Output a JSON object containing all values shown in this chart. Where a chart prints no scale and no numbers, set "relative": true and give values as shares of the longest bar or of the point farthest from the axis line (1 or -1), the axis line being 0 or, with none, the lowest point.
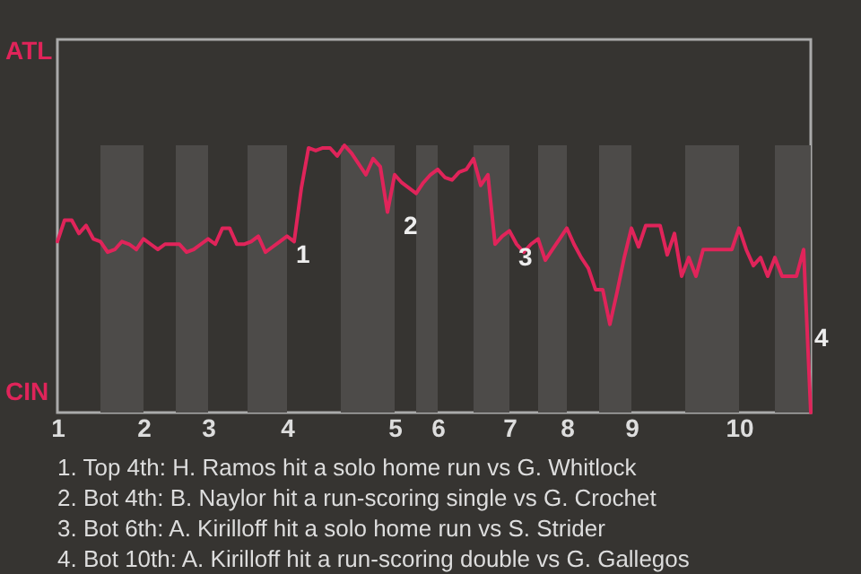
{
  "chart_data": {
    "type": "line",
    "relative": true,
    "categories": [
      "1",
      null,
      null,
      null,
      null,
      null,
      null,
      null,
      null,
      null,
      null,
      null,
      "2",
      null,
      null,
      null,
      null,
      null,
      null,
      null,
      null,
      "3",
      null,
      null,
      null,
      null,
      null,
      null,
      null,
      null,
      null,
      null,
      "4",
      null,
      null,
      null,
      null,
      null,
      null,
      null,
      null,
      null,
      null,
      null,
      null,
      null,
      null,
      "5",
      null,
      null,
      null,
      null,
      null,
      "6",
      null,
      null,
      null,
      null,
      null,
      null,
      null,
      null,
      null,
      "7",
      null,
      null,
      null,
      null,
      null,
      null,
      null,
      "8",
      null,
      null,
      null,
      null,
      null,
      null,
      null,
      null,
      "9",
      null,
      null,
      null,
      null,
      null,
      null,
      null,
      null,
      null,
      null,
      null,
      null,
      null,
      null,
      "10",
      null,
      null,
      null,
      null,
      null,
      null,
      null,
      null,
      null,
      null
    ],
    "series": [
      {
        "color": "#e0245a",
        "values": [
          0.64,
          0.72,
          0.72,
          0.67,
          0.7,
          0.65,
          0.64,
          0.6,
          0.61,
          0.64,
          0.63,
          0.61,
          0.65,
          0.63,
          0.61,
          0.63,
          0.63,
          0.63,
          0.6,
          0.61,
          0.63,
          0.65,
          0.63,
          0.69,
          0.69,
          0.63,
          0.63,
          0.64,
          0.66,
          0.6,
          0.62,
          0.64,
          0.66,
          0.64,
          0.84,
          0.99,
          0.98,
          0.99,
          0.99,
          0.96,
          1,
          0.97,
          0.93,
          0.89,
          0.95,
          0.92,
          0.75,
          0.89,
          0.86,
          0.84,
          0.82,
          0.86,
          0.89,
          0.91,
          0.88,
          0.87,
          0.9,
          0.91,
          0.95,
          0.85,
          0.89,
          0.63,
          0.66,
          0.68,
          0.63,
          0.6,
          0.63,
          0.65,
          0.57,
          0.61,
          0.65,
          0.69,
          0.63,
          0.58,
          0.54,
          0.46,
          0.46,
          0.33,
          0.45,
          0.58,
          0.69,
          0.62,
          0.7,
          0.7,
          0.7,
          0.59,
          0.67,
          0.51,
          0.58,
          0.51,
          0.61,
          0.61,
          0.61,
          0.61,
          0.61,
          0.69,
          0.61,
          0.55,
          0.58,
          0.51,
          0.58,
          0.51,
          0.51,
          0.51,
          0.61,
          0
        ]
      }
    ],
    "annotations": [
      "ATL",
      "CIN",
      "4",
      {
        "text": "1",
        "x": "4",
        "y": 0.64
      },
      {
        "text": "2",
        "x": "5",
        "y": 0.75
      },
      {
        "text": "3",
        "x": "7",
        "y": 0.63
      },
      "1. Top 4th: H. Ramos hit a solo home run vs G. Whitlock",
      "2. Bot 4th: B. Naylor hit a run-scoring single vs G. Crochet",
      "3. Bot 6th: A. Kirilloff hit a solo home run vs S. Strider",
      "4. Bot 10th: A. Kirilloff hit a run-scoring double vs G. Gallegos"
    ]
  }
}
